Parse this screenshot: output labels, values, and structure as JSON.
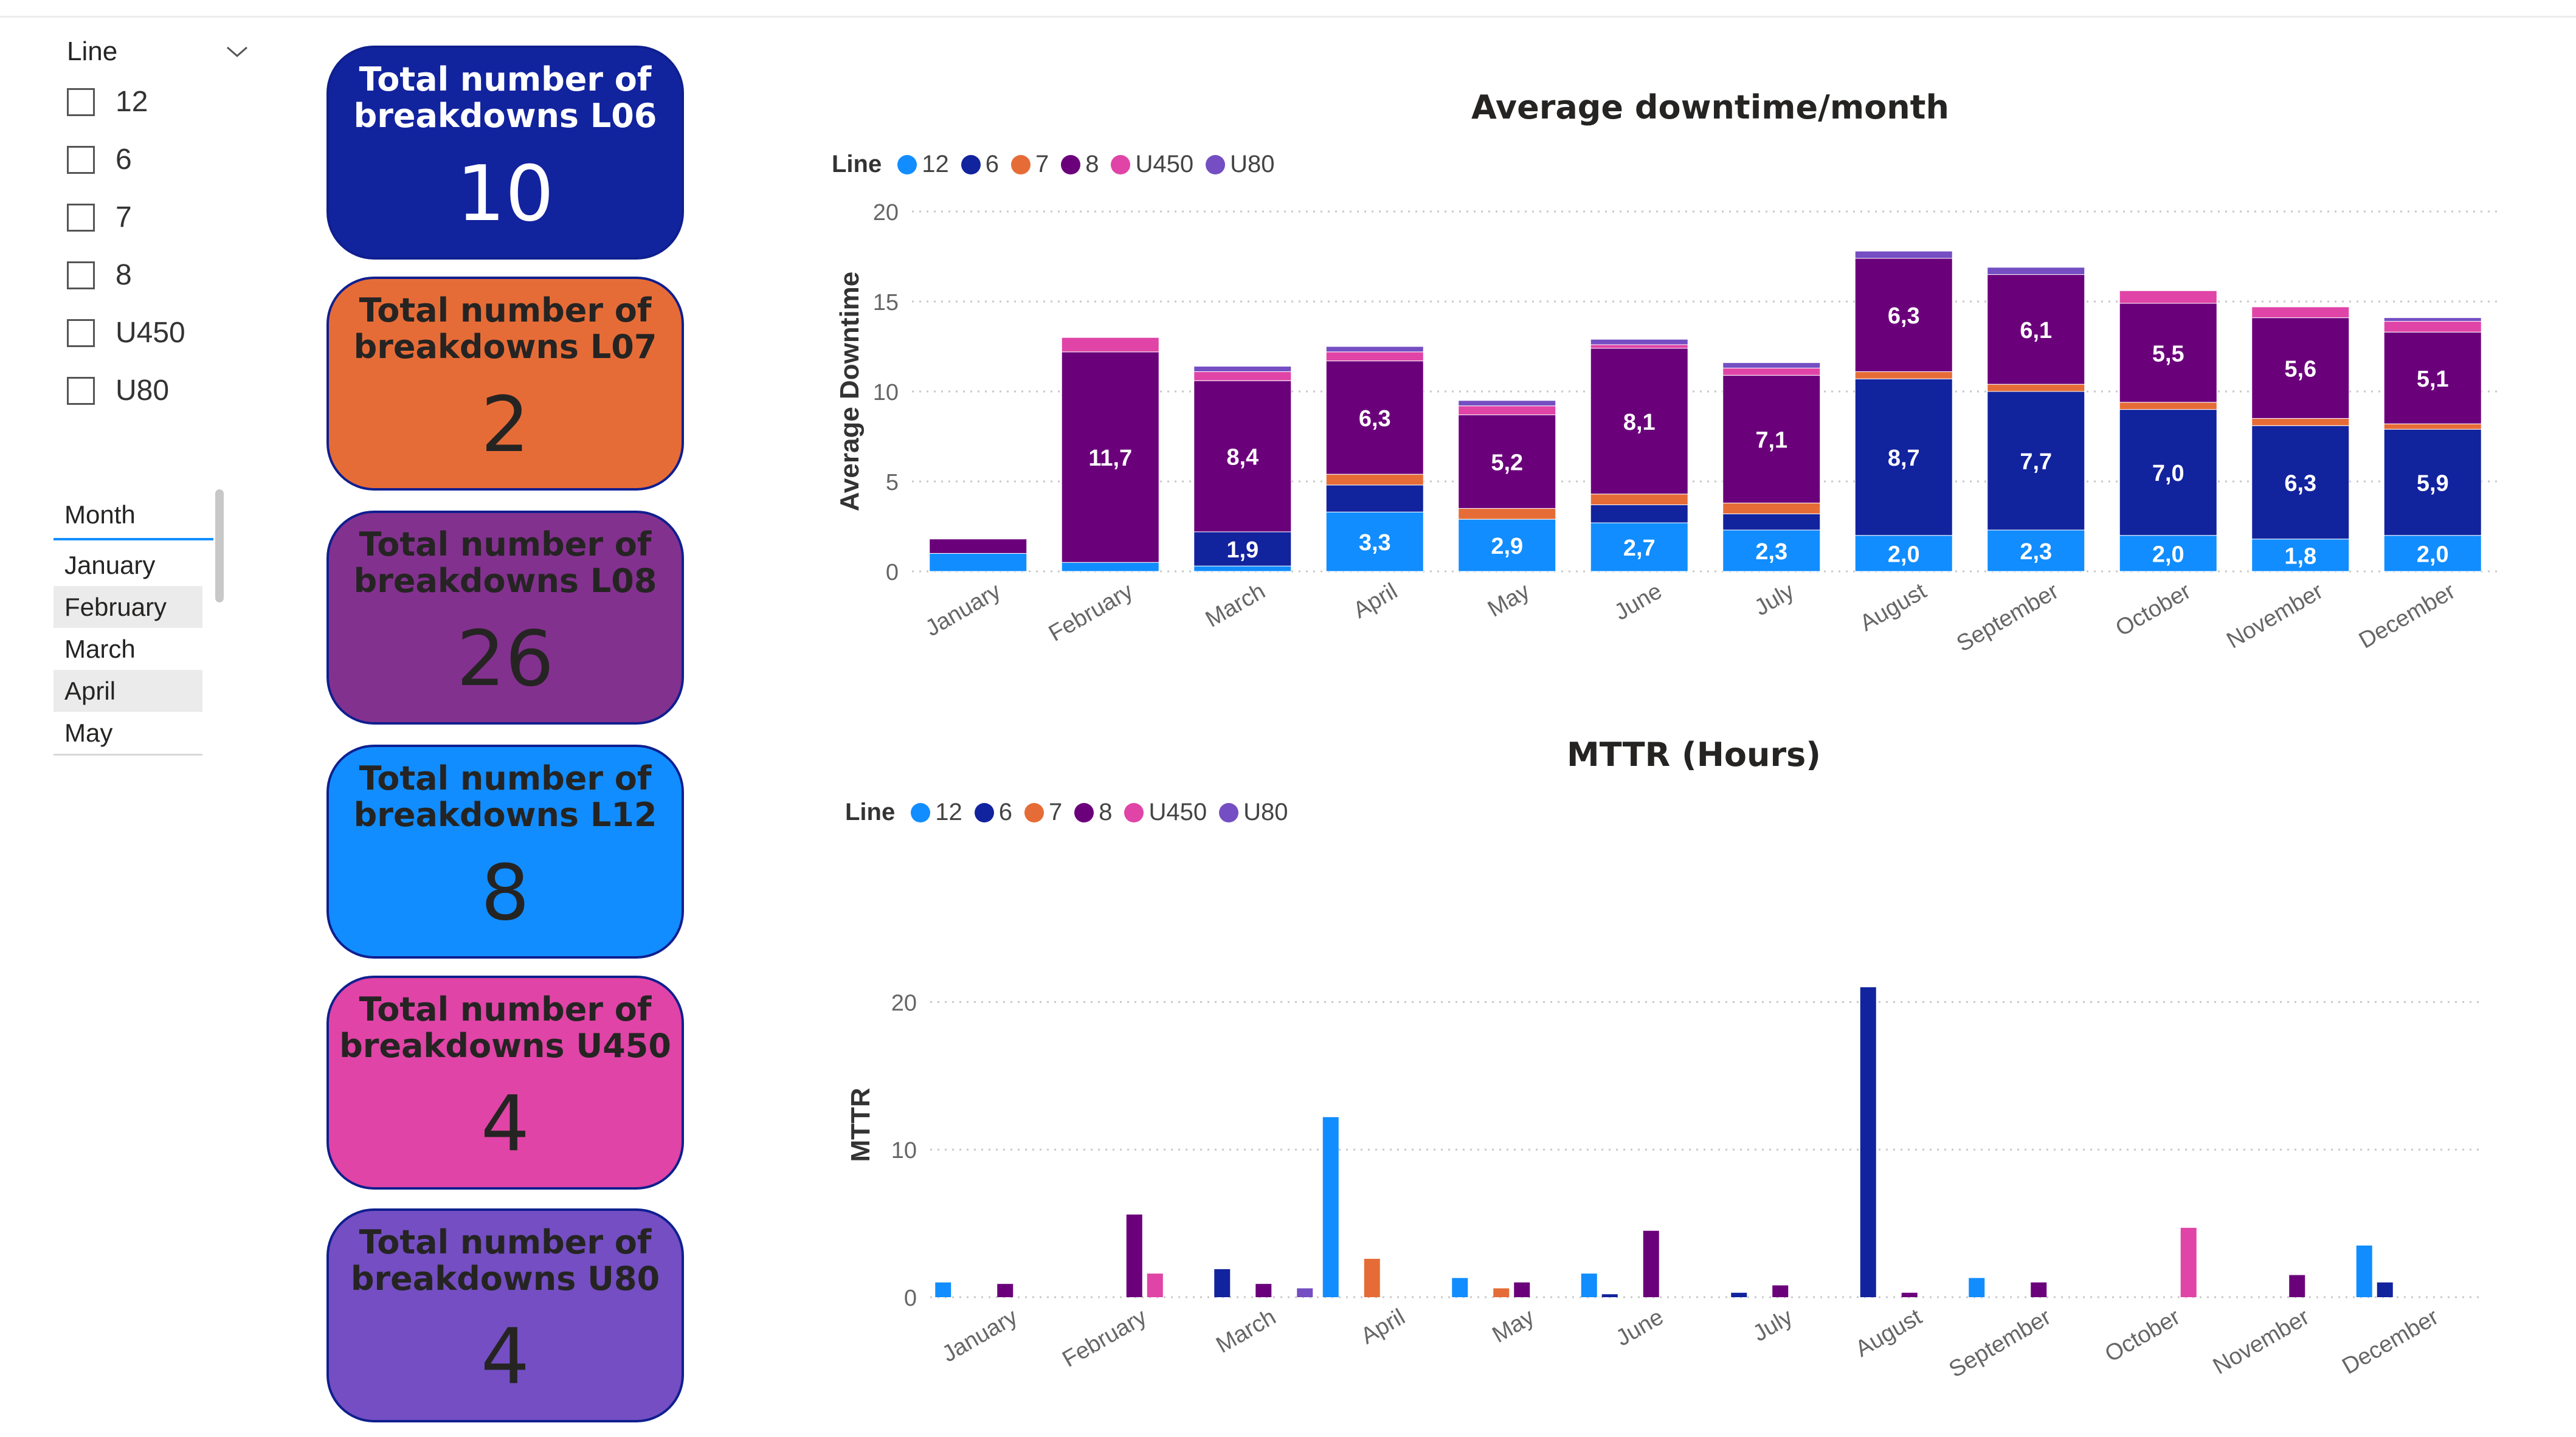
{
  "colors": {
    "12": "#118DFF",
    "6": "#12239E",
    "7": "#E66C37",
    "8": "#6B007B",
    "U450": "#E044A7",
    "U80": "#744EC2"
  },
  "line_slicer": {
    "title": "Line",
    "options": [
      "12",
      "6",
      "7",
      "8",
      "U450",
      "U80"
    ]
  },
  "month_slicer": {
    "title": "Month",
    "items": [
      "January",
      "February",
      "March",
      "April",
      "May"
    ]
  },
  "cards": [
    {
      "title_l1": "Total number of",
      "title_l2": "breakdowns L06",
      "value": "10",
      "bg": "#12239E",
      "text": "#ffffff"
    },
    {
      "title_l1": "Total number of",
      "title_l2": "breakdowns L07",
      "value": "2",
      "bg": "#E66C37",
      "text": "#252423"
    },
    {
      "title_l1": "Total number of",
      "title_l2": "breakdowns L08",
      "value": "26",
      "bg": "#83318F",
      "text": "#252423"
    },
    {
      "title_l1": "Total number of",
      "title_l2": "breakdowns L12",
      "value": "8",
      "bg": "#118DFF",
      "text": "#252423"
    },
    {
      "title_l1": "Total number of",
      "title_l2": "breakdowns U450",
      "value": "4",
      "bg": "#E044A7",
      "text": "#252423"
    },
    {
      "title_l1": "Total number of",
      "title_l2": "breakdowns U80",
      "value": "4",
      "bg": "#744EC2",
      "text": "#252423"
    }
  ],
  "chart_data": [
    {
      "type": "bar",
      "stacked": true,
      "title": "Average downtime/month",
      "legend_title": "Line",
      "ylabel": "Average Downtime",
      "ylim": [
        0,
        20
      ],
      "yticks": [
        0,
        5,
        10,
        15,
        20
      ],
      "categories": [
        "January",
        "February",
        "March",
        "April",
        "May",
        "June",
        "July",
        "August",
        "September",
        "October",
        "November",
        "December"
      ],
      "series": [
        {
          "name": "12",
          "values": [
            1.0,
            0.5,
            0.3,
            3.3,
            2.9,
            2.7,
            2.3,
            2.0,
            2.3,
            2.0,
            1.8,
            2.0
          ],
          "labels": [
            "",
            "",
            "",
            "3,3",
            "2,9",
            "2,7",
            "2,3",
            "2,0",
            "2,3",
            "2,0",
            "1,8",
            "2,0"
          ]
        },
        {
          "name": "6",
          "values": [
            0,
            0,
            1.9,
            1.5,
            0,
            1.0,
            0.9,
            8.7,
            7.7,
            7.0,
            6.3,
            5.9
          ],
          "labels": [
            "",
            "",
            "1,9",
            "",
            "",
            "",
            "",
            "8,7",
            "7,7",
            "7,0",
            "6,3",
            "5,9"
          ]
        },
        {
          "name": "7",
          "values": [
            0,
            0,
            0,
            0.6,
            0.6,
            0.6,
            0.6,
            0.4,
            0.4,
            0.4,
            0.4,
            0.3
          ],
          "labels": [
            "",
            "",
            "",
            "",
            "",
            "",
            "",
            "",
            "",
            "",
            "",
            ""
          ]
        },
        {
          "name": "8",
          "values": [
            0.8,
            11.7,
            8.4,
            6.3,
            5.2,
            8.1,
            7.1,
            6.3,
            6.1,
            5.5,
            5.6,
            5.1
          ],
          "labels": [
            "",
            "11,7",
            "8,4",
            "6,3",
            "5,2",
            "8,1",
            "7,1",
            "6,3",
            "6,1",
            "5,5",
            "5,6",
            "5,1"
          ]
        },
        {
          "name": "U450",
          "values": [
            0,
            0.8,
            0.5,
            0.5,
            0.5,
            0.2,
            0.4,
            0,
            0,
            0.7,
            0.6,
            0.6
          ],
          "labels": [
            "",
            "",
            "",
            "",
            "",
            "",
            "",
            "",
            "",
            "",
            "",
            ""
          ]
        },
        {
          "name": "U80",
          "values": [
            0,
            0,
            0.3,
            0.3,
            0.3,
            0.3,
            0.3,
            0.4,
            0.4,
            0,
            0,
            0.2
          ],
          "labels": [
            "",
            "",
            "",
            "",
            "",
            "",
            "",
            "",
            "",
            "",
            "",
            ""
          ]
        }
      ]
    },
    {
      "type": "bar",
      "stacked": false,
      "title": "MTTR (Hours)",
      "legend_title": "Line",
      "ylabel": "MTTR",
      "ylim": [
        0,
        25
      ],
      "yticks": [
        0,
        10,
        20
      ],
      "categories": [
        "January",
        "February",
        "March",
        "April",
        "May",
        "June",
        "July",
        "August",
        "September",
        "October",
        "November",
        "December"
      ],
      "series": [
        {
          "name": "12",
          "values": [
            1.0,
            0,
            0,
            12.2,
            1.3,
            1.6,
            0,
            0,
            1.3,
            0,
            0,
            3.5
          ]
        },
        {
          "name": "6",
          "values": [
            0,
            0,
            1.9,
            0,
            0,
            0.2,
            0.3,
            21.0,
            0,
            0,
            0,
            1.0
          ]
        },
        {
          "name": "7",
          "values": [
            0,
            0,
            0,
            2.6,
            0.6,
            0,
            0,
            0,
            0,
            0,
            0,
            0
          ]
        },
        {
          "name": "8",
          "values": [
            0.9,
            5.6,
            0.9,
            0,
            1.0,
            4.5,
            0.8,
            0.3,
            1.0,
            0,
            1.5,
            0
          ]
        },
        {
          "name": "U450",
          "values": [
            0,
            1.6,
            0,
            0,
            0,
            0,
            0,
            0,
            0,
            4.7,
            0,
            0
          ]
        },
        {
          "name": "U80",
          "values": [
            0,
            0,
            0.6,
            0,
            0,
            0,
            0,
            0,
            0,
            0,
            0,
            0
          ]
        }
      ]
    }
  ]
}
